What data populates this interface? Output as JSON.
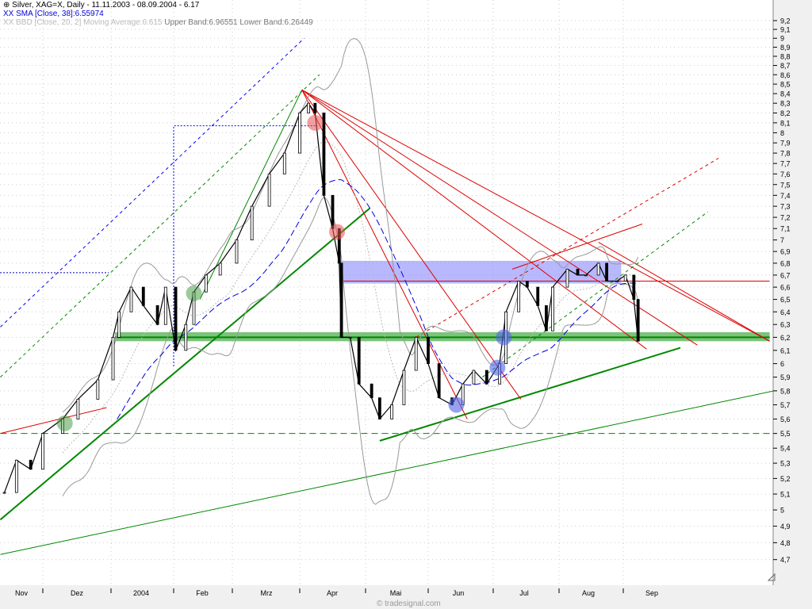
{
  "header": {
    "title": "Silver, XAG=X, Daily - 11.11.2003 - 08.09.2004 - 6.17",
    "sma": "XX SMA [Close, 38]:6.55974",
    "bbd_prefix": "XX BBD [Close, 20, 2] Moving Average:6.615",
    "bbd_bands": "Upper Band:6.96551 Lower Band:6.26449"
  },
  "watermark": "© tradesignal.com",
  "colors": {
    "price": "#000000",
    "sma": "#0000dd",
    "bollinger": "#999999",
    "support": "#008800",
    "resistance": "#dd0000",
    "zone_blue": "#8888ff",
    "axis_bg": "#f0f0f0"
  },
  "chart_data": {
    "type": "candlestick",
    "instrument": "Silver, XAG=X, Daily",
    "y_scale": "log",
    "ylim": [
      4.65,
      9.25
    ],
    "y_ticks": [
      "9,2",
      "9,1",
      "9",
      "8,9",
      "8,8",
      "8,7",
      "8,6",
      "8,5",
      "8,4",
      "8,3",
      "8,2",
      "8,1",
      "8",
      "7,9",
      "7,8",
      "7,7",
      "7,6",
      "7,5",
      "7,4",
      "7,3",
      "7,2",
      "7,1",
      "7",
      "6,9",
      "6,8",
      "6,7",
      "6,6",
      "6,5",
      "6,4",
      "6,3",
      "6,2",
      "6,1",
      "6",
      "5,9",
      "5,8",
      "5,7",
      "5,6",
      "5,5",
      "5,4",
      "5,3",
      "5,2",
      "5,1",
      "5",
      "4,9",
      "4,8",
      "4,7"
    ],
    "x_ticks": [
      "Nov",
      "Dez",
      "2004",
      "Feb",
      "Mrz",
      "Apr",
      "Mai",
      "Jun",
      "Jul",
      "Aug",
      "Sep"
    ],
    "grid": true,
    "closes": [
      [
        "2003-11-12",
        5.11
      ],
      [
        "2003-11-18",
        5.32
      ],
      [
        "2003-11-25",
        5.26
      ],
      [
        "2003-12-01",
        5.5
      ],
      [
        "2003-12-10",
        5.6
      ],
      [
        "2003-12-17",
        5.74
      ],
      [
        "2003-12-26",
        5.88
      ],
      [
        "2004-01-02",
        6.2
      ],
      [
        "2004-01-05",
        6.4
      ],
      [
        "2004-01-11",
        6.6
      ],
      [
        "2004-01-17",
        6.45
      ],
      [
        "2004-01-24",
        6.3
      ],
      [
        "2004-01-28",
        6.6
      ],
      [
        "2004-02-02",
        6.1
      ],
      [
        "2004-02-07",
        6.3
      ],
      [
        "2004-02-11",
        6.56
      ],
      [
        "2004-02-17",
        6.7
      ],
      [
        "2004-02-24",
        6.8
      ],
      [
        "2004-03-03",
        7.0
      ],
      [
        "2004-03-10",
        7.3
      ],
      [
        "2004-03-18",
        7.6
      ],
      [
        "2004-03-25",
        7.8
      ],
      [
        "2004-04-01",
        8.2
      ],
      [
        "2004-04-05",
        8.3
      ],
      [
        "2004-04-08",
        8.2
      ],
      [
        "2004-04-12",
        7.4
      ],
      [
        "2004-04-16",
        7.1
      ],
      [
        "2004-04-19",
        6.8
      ],
      [
        "2004-04-20",
        6.2
      ],
      [
        "2004-04-24",
        6.2
      ],
      [
        "2004-04-28",
        5.85
      ],
      [
        "2004-05-04",
        5.75
      ],
      [
        "2004-05-08",
        5.6
      ],
      [
        "2004-05-14",
        5.7
      ],
      [
        "2004-05-20",
        5.95
      ],
      [
        "2004-05-26",
        6.2
      ],
      [
        "2004-06-01",
        6.0
      ],
      [
        "2004-06-06",
        5.75
      ],
      [
        "2004-06-12",
        5.7
      ],
      [
        "2004-06-17",
        5.85
      ],
      [
        "2004-06-22",
        5.95
      ],
      [
        "2004-06-28",
        5.85
      ],
      [
        "2004-07-04",
        6.0
      ],
      [
        "2004-07-07",
        6.4
      ],
      [
        "2004-07-13",
        6.65
      ],
      [
        "2004-07-17",
        6.6
      ],
      [
        "2004-07-22",
        6.45
      ],
      [
        "2004-07-26",
        6.25
      ],
      [
        "2004-07-29",
        6.6
      ],
      [
        "2004-08-05",
        6.75
      ],
      [
        "2004-08-10",
        6.7
      ],
      [
        "2004-08-14",
        6.7
      ],
      [
        "2004-08-20",
        6.8
      ],
      [
        "2004-08-24",
        6.65
      ],
      [
        "2004-08-29",
        6.65
      ],
      [
        "2004-09-02",
        6.7
      ],
      [
        "2004-09-06",
        6.5
      ],
      [
        "2004-09-08",
        6.17
      ]
    ],
    "indicators": [
      {
        "name": "SMA",
        "params": "Close, 38",
        "value": 6.55974
      },
      {
        "name": "BBD",
        "params": "Close, 20, 2",
        "moving_average": 6.615,
        "upper": 6.96551,
        "lower": 6.26449
      }
    ],
    "annotations": {
      "support_zone": {
        "from": "2004-01-03",
        "to": "2004-11-09",
        "low": 6.17,
        "high": 6.24
      },
      "resistance_zone": {
        "from": "2004-04-19",
        "to": "2004-08-31",
        "low": 6.63,
        "high": 6.82
      },
      "resistance_line": {
        "from": "2004-04-19",
        "to": "2004-11-09",
        "price": 6.65
      },
      "dashed_support": {
        "from": "2003-11-10",
        "to": "2004-11-11",
        "price": 5.5
      },
      "trendlines": [
        {
          "color": "green",
          "width": 2,
          "p1": [
            "2003-11-10",
            4.94
          ],
          "p2": [
            "2004-05-03",
            7.28
          ]
        },
        {
          "color": "green",
          "width": 2,
          "p1": [
            "2004-05-08",
            5.45
          ],
          "p2": [
            "2004-09-28",
            6.12
          ]
        },
        {
          "color": "green",
          "width": 1,
          "p1": [
            "2003-11-10",
            4.73
          ],
          "p2": [
            "2004-11-11",
            5.8
          ]
        },
        {
          "color": "green",
          "width": 1,
          "p1": [
            "2004-02-14",
            6.5
          ],
          "p2": [
            "2004-04-02",
            8.44
          ]
        },
        {
          "color": "red",
          "width": 1,
          "p1": [
            "2003-11-10",
            5.5
          ],
          "p2": [
            "2003-12-30",
            5.68
          ]
        },
        {
          "color": "red",
          "width": 1,
          "p1": [
            "2004-04-02",
            8.44
          ],
          "p2": [
            "2004-11-09",
            6.17
          ]
        },
        {
          "color": "red",
          "width": 1,
          "p1": [
            "2004-04-02",
            8.44
          ],
          "p2": [
            "2004-10-06",
            6.14
          ]
        },
        {
          "color": "red",
          "width": 1,
          "p1": [
            "2004-04-02",
            8.44
          ],
          "p2": [
            "2004-09-12",
            6.11
          ]
        },
        {
          "color": "red",
          "width": 1,
          "p1": [
            "2004-04-02",
            8.44
          ],
          "p2": [
            "2004-07-14",
            5.74
          ]
        },
        {
          "color": "red",
          "width": 1,
          "p1": [
            "2004-04-02",
            8.44
          ],
          "p2": [
            "2004-06-19",
            5.6
          ]
        },
        {
          "color": "red",
          "width": 1,
          "p1": [
            "2004-08-20",
            6.98
          ],
          "p2": [
            "2004-11-09",
            6.17
          ]
        },
        {
          "color": "red",
          "width": 1,
          "p1": [
            "2004-07-10",
            6.75
          ],
          "p2": [
            "2004-09-10",
            7.14
          ]
        },
        {
          "color": "blue",
          "width": 1,
          "dash": true,
          "p1": [
            "2003-11-10",
            6.28
          ],
          "p2": [
            "2004-04-03",
            9.0
          ]
        },
        {
          "color": "green",
          "width": 1,
          "dash": true,
          "p1": [
            "2003-11-10",
            5.9
          ],
          "p2": [
            "2004-04-10",
            8.6
          ]
        },
        {
          "color": "red",
          "width": 1,
          "dash": true,
          "p1": [
            "2004-05-26",
            6.2
          ],
          "p2": [
            "2004-10-16",
            7.75
          ]
        },
        {
          "color": "green",
          "width": 1,
          "dash": true,
          "p1": [
            "2004-06-26",
            5.9
          ],
          "p2": [
            "2004-10-11",
            7.25
          ]
        }
      ],
      "blue_dotted_box": {
        "from": "2004-02-01",
        "to": "2004-04-09",
        "top": 8.07,
        "bottom": 5.98
      },
      "markers": [
        {
          "color": "red",
          "date": "2004-04-08",
          "price": 8.1
        },
        {
          "color": "red",
          "date": "2004-04-18",
          "price": 7.07
        },
        {
          "color": "green",
          "date": "2003-12-11",
          "price": 5.57
        },
        {
          "color": "green",
          "date": "2004-02-11",
          "price": 6.55
        },
        {
          "color": "blue",
          "date": "2004-07-06",
          "price": 6.2
        },
        {
          "color": "blue",
          "date": "2004-07-03",
          "price": 5.97
        },
        {
          "color": "blue",
          "date": "2004-06-14",
          "price": 5.7
        }
      ]
    }
  }
}
